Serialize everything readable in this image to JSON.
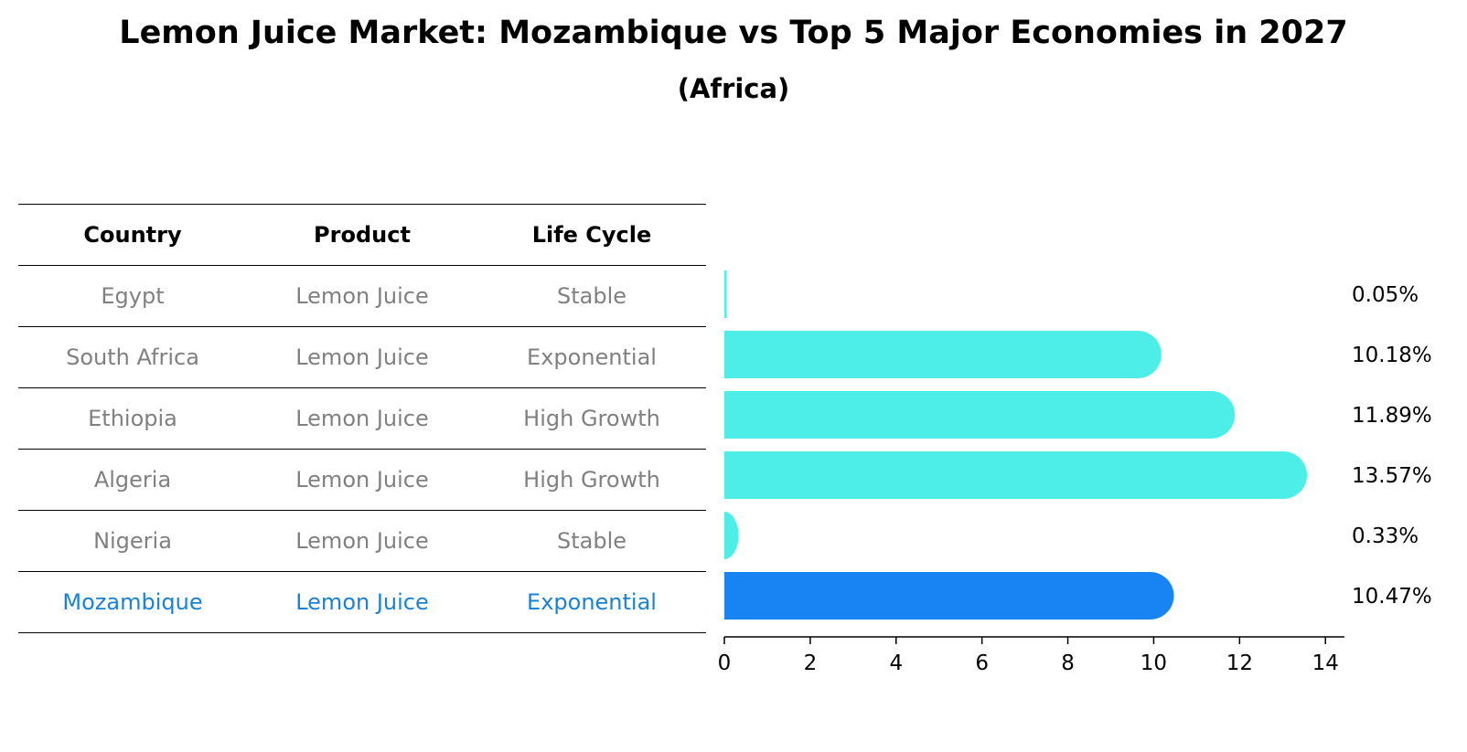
{
  "title": "Lemon Juice Market: Mozambique vs Top 5 Major Economies in 2027",
  "subtitle": "(Africa)",
  "table": {
    "headers": [
      "Country",
      "Product",
      "Life Cycle"
    ],
    "rows": [
      {
        "country": "Egypt",
        "product": "Lemon Juice",
        "life_cycle": "Stable",
        "highlight": false
      },
      {
        "country": "South Africa",
        "product": "Lemon Juice",
        "life_cycle": "Exponential",
        "highlight": false
      },
      {
        "country": "Ethiopia",
        "product": "Lemon Juice",
        "life_cycle": "High Growth",
        "highlight": false
      },
      {
        "country": "Algeria",
        "product": "Lemon Juice",
        "life_cycle": "High Growth",
        "highlight": false
      },
      {
        "country": "Nigeria",
        "product": "Lemon Juice",
        "life_cycle": "Stable",
        "highlight": false
      },
      {
        "country": "Mozambique",
        "product": "Lemon Juice",
        "life_cycle": "Exponential",
        "highlight": true
      }
    ]
  },
  "chart_data": {
    "type": "bar",
    "orientation": "horizontal",
    "categories": [
      "Egypt",
      "South Africa",
      "Ethiopia",
      "Algeria",
      "Nigeria",
      "Mozambique"
    ],
    "values": [
      0.05,
      10.18,
      11.89,
      13.57,
      0.33,
      10.47
    ],
    "value_labels": [
      "0.05%",
      "10.18%",
      "11.89%",
      "13.57%",
      "0.33%",
      "10.47%"
    ],
    "xlim": [
      0,
      14.4
    ],
    "xticks": [
      0,
      2,
      4,
      6,
      8,
      10,
      12,
      14
    ],
    "grid": false,
    "colors": {
      "default": "#4deee8",
      "highlight": "#1884f4",
      "highlight_text": "#1a82d6",
      "muted_text": "#808080"
    }
  }
}
